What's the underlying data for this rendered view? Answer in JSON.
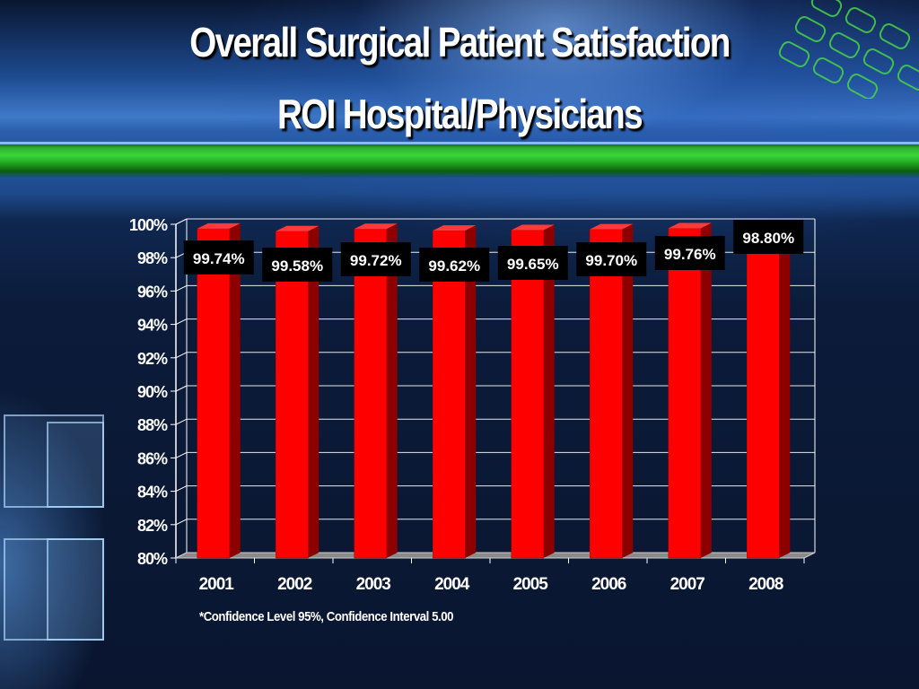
{
  "slide": {
    "title_line1": "Overall Surgical Patient Satisfaction",
    "title_line2": "ROI Hospital/Physicians",
    "footnote": "*Confidence Level 95%, Confidence Interval 5.00"
  },
  "colors": {
    "bar": "#ff0000",
    "bar_side": "#8c0000",
    "bar_top": "#ff3a3a",
    "label_bg": "#000000",
    "label_text": "#ffffff",
    "axis_text": "#ffffff",
    "gridline": "#ffffff",
    "floor": "#8a8a8a"
  },
  "chart_data": {
    "type": "bar",
    "categories": [
      "2001",
      "2002",
      "2003",
      "2004",
      "2005",
      "2006",
      "2007",
      "2008"
    ],
    "values": [
      99.74,
      99.58,
      99.72,
      99.62,
      99.65,
      99.7,
      99.76,
      98.8
    ],
    "data_labels": [
      "99.74%",
      "99.58%",
      "99.72%",
      "99.62%",
      "99.65%",
      "99.70%",
      "99.76%",
      "98.80%"
    ],
    "yticks": [
      "80%",
      "82%",
      "84%",
      "86%",
      "88%",
      "90%",
      "92%",
      "94%",
      "96%",
      "98%",
      "100%"
    ],
    "ylim": [
      80,
      100
    ],
    "grid": true,
    "title": "",
    "xlabel": "",
    "ylabel": ""
  }
}
